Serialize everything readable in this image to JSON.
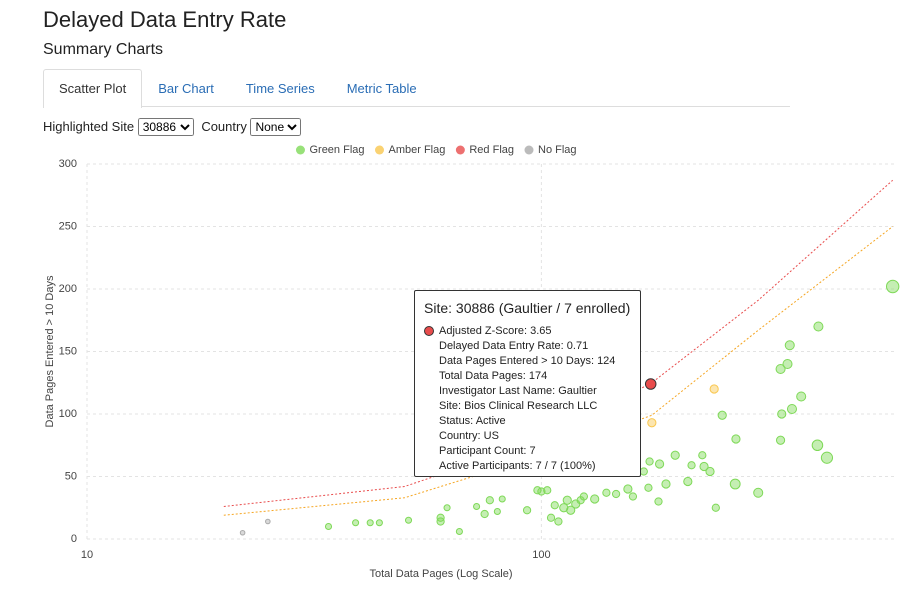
{
  "header": {
    "title": "Delayed Data Entry Rate",
    "subtitle": "Summary Charts"
  },
  "tabs": [
    "Scatter Plot",
    "Bar Chart",
    "Time Series",
    "Metric Table"
  ],
  "active_tab": 0,
  "controls": {
    "site_label": "Highlighted Site",
    "site_value": "30886",
    "country_label": "Country",
    "country_value": "None"
  },
  "chart_data": {
    "type": "scatter",
    "xlabel": "Total Data Pages (Log Scale)",
    "ylabel": "Data Pages Entered > 10 Days",
    "log_x": true,
    "xlim": [
      10,
      600
    ],
    "xticks": [
      10,
      100
    ],
    "ylim": [
      0,
      300
    ],
    "yticks": [
      0,
      50,
      100,
      150,
      200,
      250,
      300
    ],
    "grid": true,
    "series": [
      {
        "name": "Green Flag",
        "color": "#7ed957",
        "x": [
          34,
          39,
          42,
          44,
          51,
          60,
          60,
          62,
          66,
          72,
          75,
          77,
          80,
          82,
          93,
          98,
          100,
          103,
          105,
          107,
          109,
          112,
          114,
          116,
          119,
          122,
          124,
          131,
          139,
          146,
          155,
          159,
          168,
          172,
          173,
          182,
          181,
          188,
          197,
          210,
          214,
          226,
          228,
          235,
          242,
          250,
          267,
          268,
          300,
          336,
          338,
          348,
          352,
          356,
          373,
          336,
          405,
          407,
          425,
          593
        ],
        "values": [
          10,
          13,
          13,
          13,
          15,
          14,
          17,
          25,
          6,
          26,
          20,
          31,
          22,
          32,
          23,
          39,
          38,
          39,
          17,
          27,
          14,
          25,
          31,
          23,
          28,
          31,
          34,
          32,
          37,
          36,
          40,
          34,
          54,
          41,
          62,
          60,
          30,
          44,
          67,
          46,
          59,
          67,
          58,
          54,
          25,
          99,
          44,
          80,
          37,
          136,
          100,
          140,
          155,
          104,
          114,
          79,
          75,
          170,
          65,
          202
        ],
        "sizes": [
          2,
          2,
          2,
          2,
          2,
          3,
          3,
          2,
          2,
          2,
          3,
          3,
          2,
          2,
          3,
          3,
          3,
          3,
          3,
          3,
          3,
          4,
          4,
          4,
          4,
          3,
          3,
          4,
          3,
          3,
          4,
          3,
          3,
          3,
          3,
          4,
          3,
          4,
          4,
          4,
          3,
          3,
          4,
          4,
          3,
          4,
          6,
          4,
          5,
          5,
          4,
          5,
          5,
          5,
          5,
          4,
          7,
          5,
          8,
          10
        ]
      },
      {
        "name": "Amber Flag",
        "color": "#f9c74f",
        "x": [
          240,
          175
        ],
        "values": [
          120,
          93
        ],
        "sizes": [
          4,
          4
        ]
      },
      {
        "name": "Red Flag",
        "color": "#e84c4c",
        "x": [
          174
        ],
        "values": [
          124
        ],
        "sizes": [
          7
        ]
      },
      {
        "name": "No Flag",
        "color": "#aaaaaa",
        "x": [
          22,
          25
        ],
        "values": [
          5,
          14
        ],
        "sizes": [
          1,
          1
        ]
      }
    ],
    "thresholds": [
      {
        "color": "#e84c4c",
        "x": [
          20,
          50,
          100,
          175,
          300,
          593
        ],
        "values": [
          26,
          42,
          79,
          125,
          191,
          287
        ]
      },
      {
        "color": "#f5a623",
        "x": [
          20,
          50,
          100,
          175,
          300,
          593
        ],
        "values": [
          19,
          33,
          67,
          99,
          167,
          250
        ]
      }
    ],
    "tooltip": {
      "title": "Site: 30886 (Gaultier / 7 enrolled)",
      "lines": [
        "Adjusted Z-Score: 3.65",
        "Delayed Data Entry Rate: 0.71",
        "Data Pages Entered > 10 Days: 124",
        "Total Data Pages: 174",
        "Investigator Last Name: Gaultier",
        "Site: Bios Clinical Research LLC",
        "Status: Active",
        "Country: US",
        "Participant Count: 7",
        "Active Participants: 7 / 7 (100%)"
      ]
    }
  }
}
